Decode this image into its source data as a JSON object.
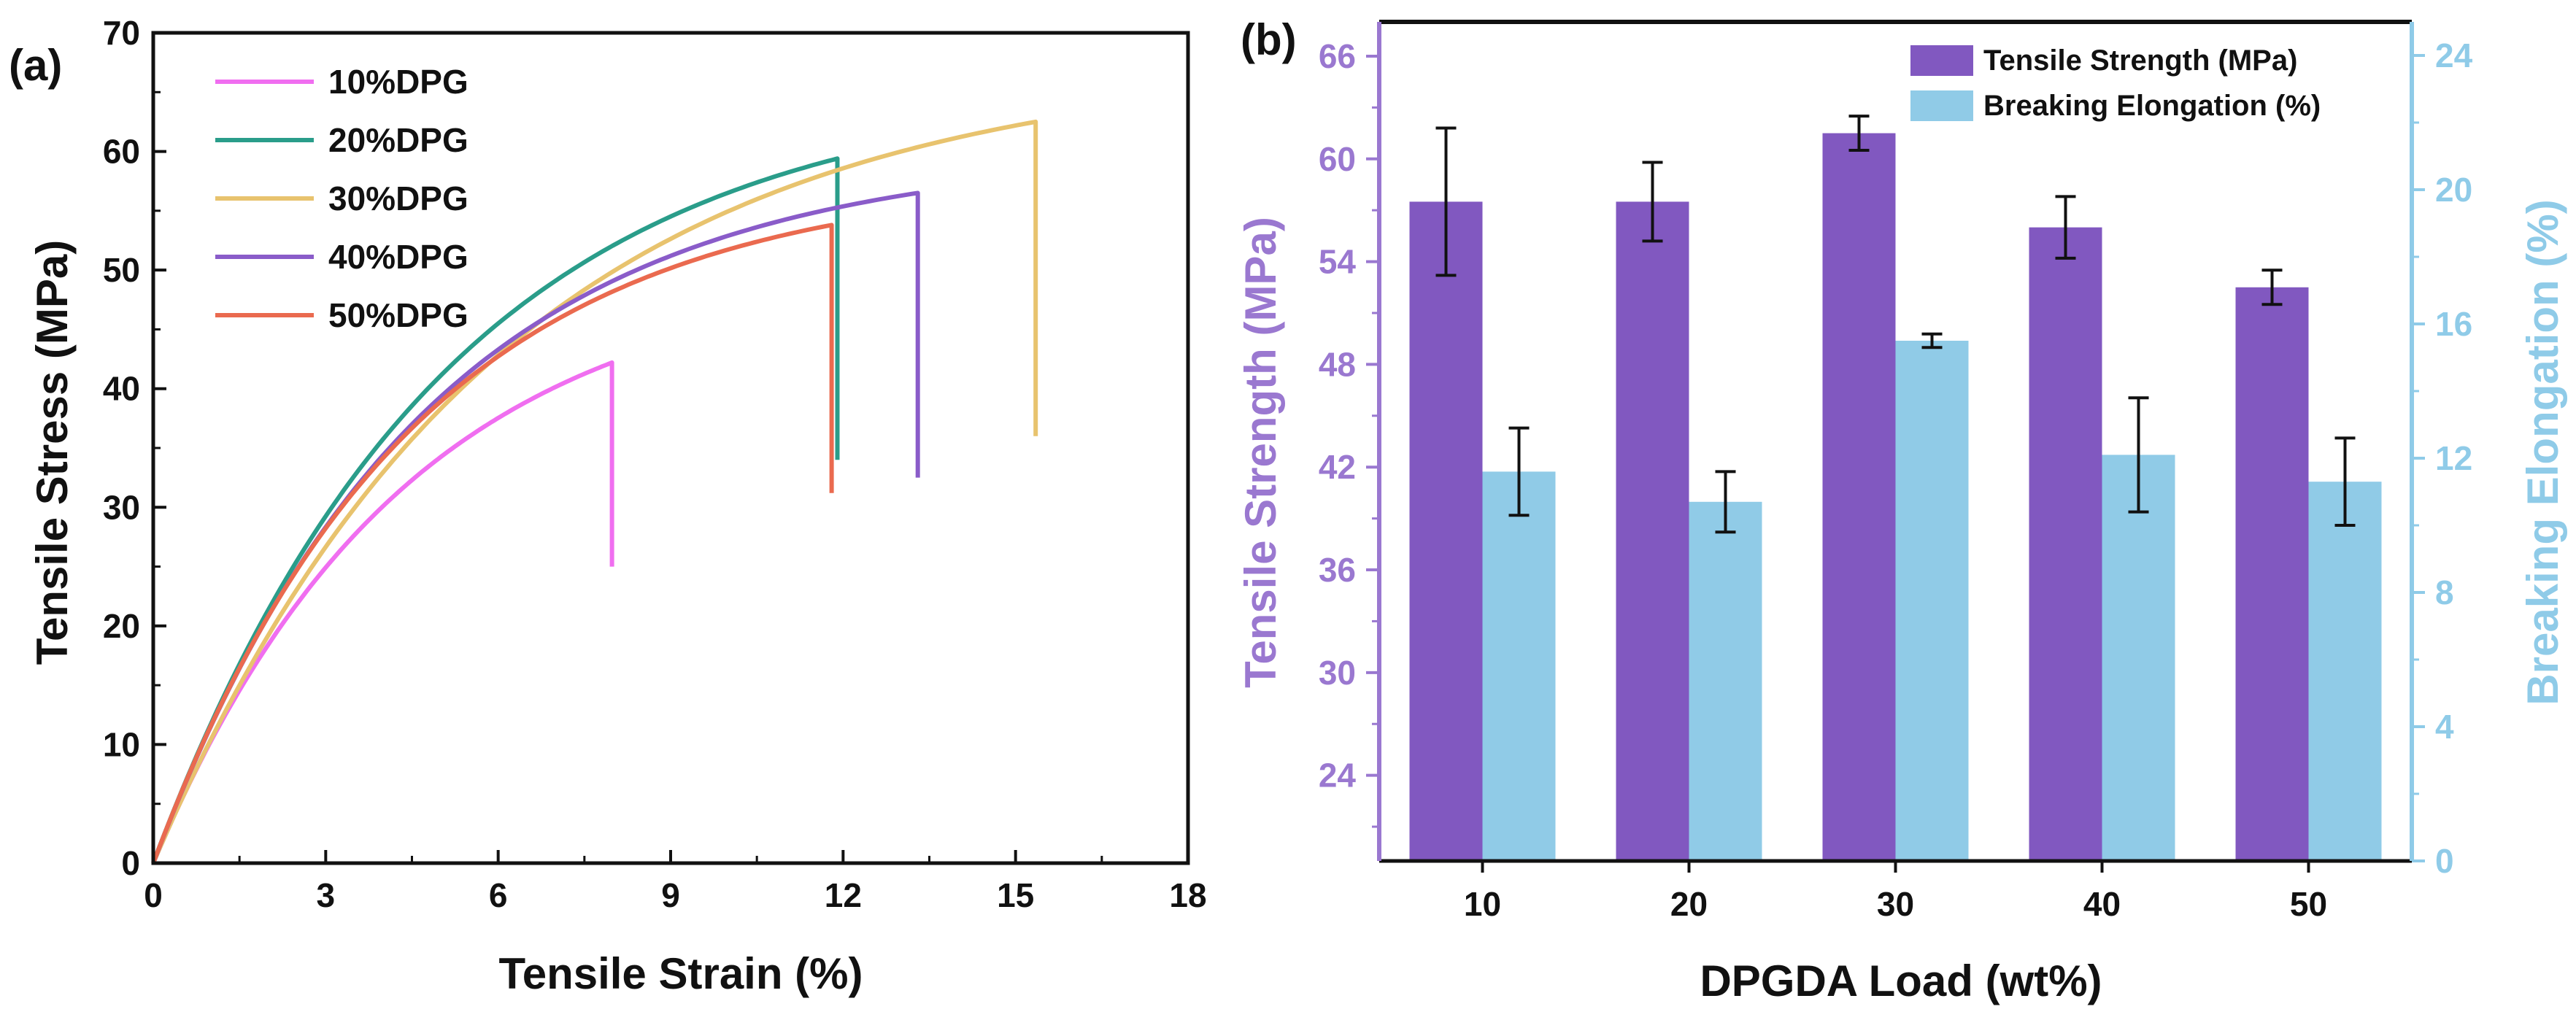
{
  "chart_data": [
    {
      "panel_label": "(a)",
      "type": "line",
      "xlabel": "Tensile Strain (%)",
      "ylabel": "Tensile Stress (MPa)",
      "xlim": [
        0,
        18
      ],
      "ylim": [
        0,
        70
      ],
      "xticks": [
        "0",
        "3",
        "6",
        "9",
        "12",
        "15",
        "18"
      ],
      "yticks": [
        "0",
        "10",
        "20",
        "30",
        "40",
        "50",
        "60",
        "70"
      ],
      "legend_position": "top-left",
      "series": [
        {
          "name": "10%DPG",
          "color": "#f06ef0",
          "k": 4.4,
          "fracture_strain": 7.98,
          "peak_stress": 42.2,
          "drop_stress": 25.0
        },
        {
          "name": "20%DPG",
          "color": "#2a9d8a",
          "k": 5.1,
          "fracture_strain": 11.9,
          "peak_stress": 59.4,
          "drop_stress": 34.0
        },
        {
          "name": "30%DPG",
          "color": "#e8c36e",
          "k": 6.0,
          "fracture_strain": 15.35,
          "peak_stress": 62.5,
          "drop_stress": 36.0
        },
        {
          "name": "40%DPG",
          "color": "#8a5cc9",
          "k": 4.7,
          "fracture_strain": 13.3,
          "peak_stress": 56.5,
          "drop_stress": 32.5
        },
        {
          "name": "50%DPG",
          "color": "#ea6a4f",
          "k": 4.5,
          "fracture_strain": 11.8,
          "peak_stress": 53.8,
          "drop_stress": 31.2
        }
      ]
    },
    {
      "panel_label": "(b)",
      "type": "bar",
      "xlabel": "DPGDA Load (wt%)",
      "ylabel_left": "Tensile Strength (MPa)",
      "ylabel_right": "Breaking Elongation (%)",
      "categories": [
        "10",
        "20",
        "30",
        "40",
        "50"
      ],
      "ylim_left": [
        19,
        68
      ],
      "ylim_right": [
        0,
        25
      ],
      "yticks_left": [
        "24",
        "30",
        "36",
        "42",
        "48",
        "54",
        "60",
        "66"
      ],
      "yticks_right": [
        "0",
        "4",
        "8",
        "12",
        "16",
        "20",
        "24"
      ],
      "legend_position": "top-right",
      "colors": {
        "strength": "#8158c0",
        "elongation": "#90cbe7",
        "left_axis": "#9a78d0",
        "right_axis": "#8fcbe8"
      },
      "series": [
        {
          "name": "Tensile Strength (MPa)",
          "axis": "left",
          "values": [
            57.5,
            57.5,
            61.5,
            56.0,
            52.5
          ],
          "errors": [
            4.3,
            2.3,
            1.0,
            1.8,
            1.0
          ]
        },
        {
          "name": "Breaking Elongation (%)",
          "axis": "right",
          "values": [
            11.6,
            10.7,
            15.5,
            12.1,
            11.3
          ],
          "errors": [
            1.3,
            0.9,
            0.2,
            1.7,
            1.3
          ]
        }
      ]
    }
  ]
}
